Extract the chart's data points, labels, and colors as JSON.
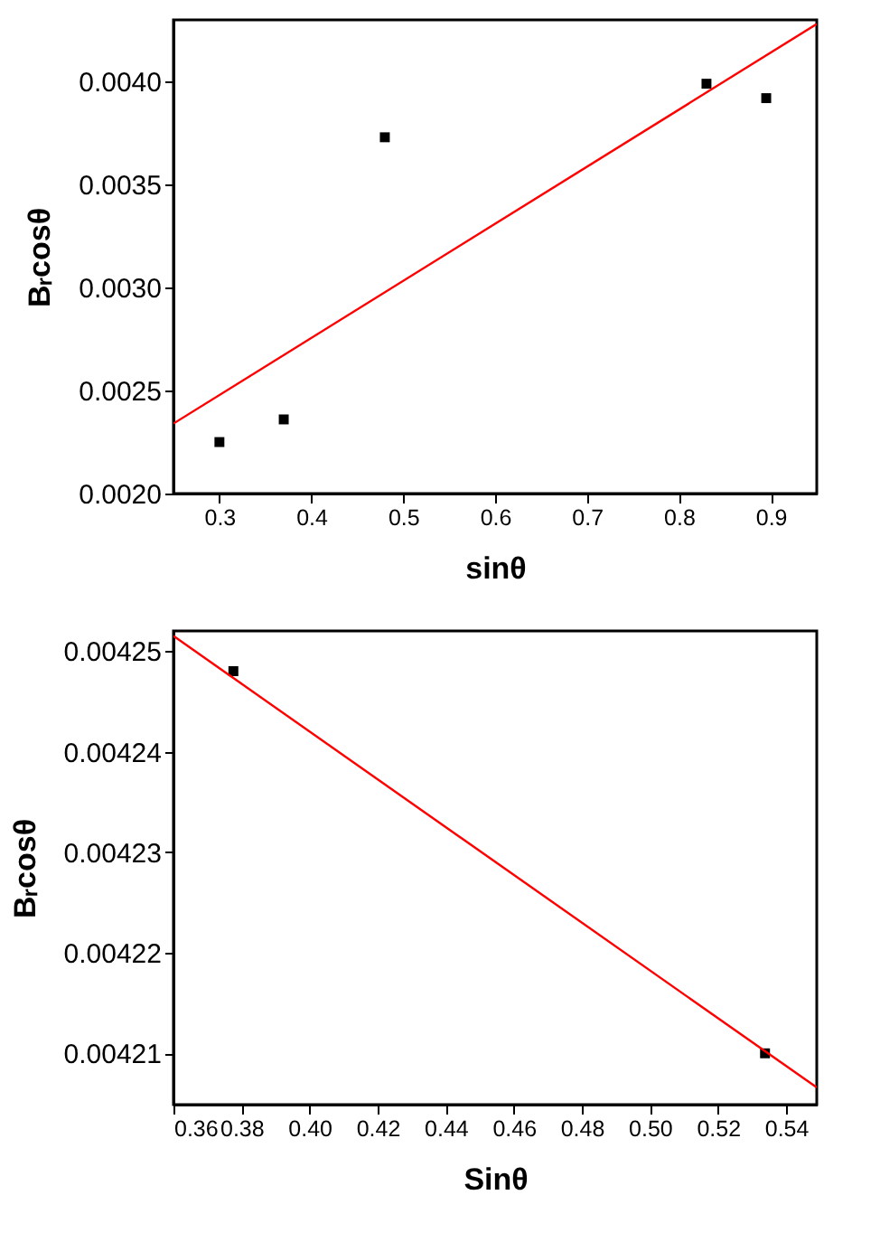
{
  "chart_data": [
    {
      "type": "scatter",
      "xlabel": "sinθ",
      "ylabel": "Bᵣcosθ",
      "grid": false,
      "marker": "square",
      "xlim": [
        0.25,
        0.95
      ],
      "xticks": [
        0.3,
        0.4,
        0.5,
        0.6,
        0.7,
        0.8,
        0.9
      ],
      "ylim": [
        0.002,
        0.0043
      ],
      "yticks": [
        {
          "value": 0.002,
          "label": "0.0020"
        },
        {
          "value": 0.0025,
          "label": "0.0025"
        },
        {
          "value": 0.003,
          "label": "0.0030"
        },
        {
          "value": 0.0035,
          "label": "0.0035"
        },
        {
          "value": 0.004,
          "label": "0.0040"
        }
      ],
      "series": [
        {
          "color": "#000000",
          "x": [
            0.3,
            0.37,
            0.48,
            0.83,
            0.895
          ],
          "values": [
            0.00225,
            0.00236,
            0.00373,
            0.00399,
            0.00392
          ]
        },
        {
          "type": "line",
          "color": "#ff0000",
          "line_style": "solid",
          "marker": "none",
          "x": [
            0.25,
            0.95
          ],
          "values": [
            0.00234,
            0.00428
          ]
        }
      ]
    },
    {
      "type": "scatter",
      "xlabel": "Sinθ",
      "ylabel": "Bᵣcosθ",
      "grid": false,
      "marker": "square",
      "xlim": [
        0.36,
        0.549
      ],
      "xticks": [
        0.36,
        0.38,
        {
          "value": 0.4,
          "label": "0.40"
        },
        0.42,
        0.44,
        0.46,
        0.48,
        {
          "value": 0.5,
          "label": "0.50"
        },
        0.52,
        0.54
      ],
      "ylim": [
        0.0042049,
        0.004252
      ],
      "yticks": [
        0.00421,
        0.00422,
        0.00423,
        0.00424,
        0.00425
      ],
      "series": [
        {
          "color": "#000000",
          "x": [
            0.3776,
            0.5338
          ],
          "values": [
            0.004248,
            0.00421
          ]
        },
        {
          "type": "line",
          "color": "#ff0000",
          "line_style": "solid",
          "marker": "none",
          "x": [
            0.36,
            0.549
          ],
          "values": [
            0.0042515,
            0.0042066
          ]
        }
      ]
    }
  ]
}
